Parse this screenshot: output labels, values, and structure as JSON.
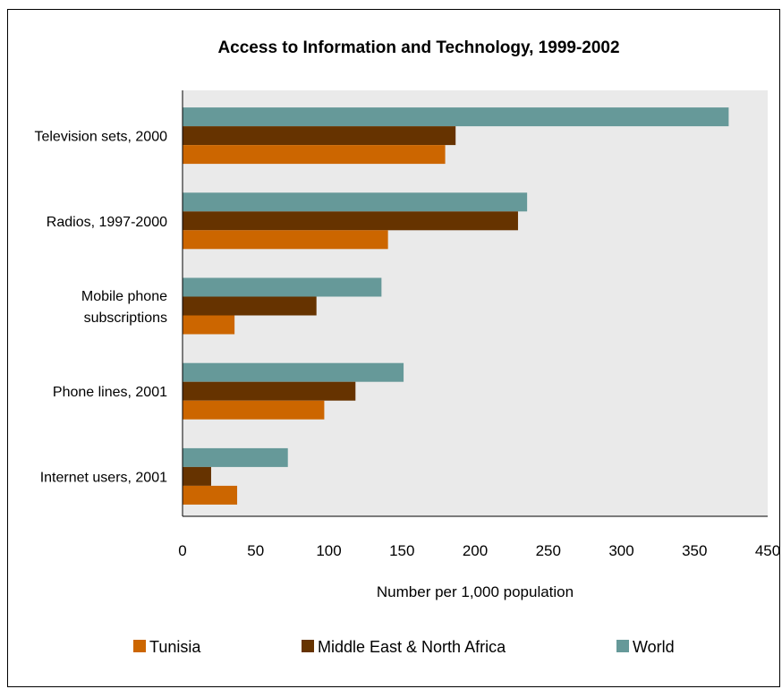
{
  "chart_data": {
    "type": "bar",
    "orientation": "horizontal",
    "title": "Access to Information and Technology, 1999-2002",
    "xlabel": "Number per 1,000 population",
    "ylabel": "",
    "xlim": [
      0,
      450
    ],
    "x_ticks": [
      "0",
      "50",
      "100",
      "150",
      "200",
      "250",
      "300",
      "350",
      "450"
    ],
    "grid": false,
    "legend_position": "bottom",
    "categories": [
      [
        "Television sets, 2000"
      ],
      [
        "Radios, 1997-2000"
      ],
      [
        "Mobile phone",
        "subscriptions"
      ],
      [
        "Phone lines, 2001"
      ],
      [
        "Internet users, 2001"
      ]
    ],
    "series": [
      {
        "name": "Tunisia",
        "color": "#CC6600",
        "values": [
          202,
          158,
          40,
          109,
          42
        ]
      },
      {
        "name": "Middle East & North Africa",
        "color": "#663300",
        "values": [
          210,
          258,
          103,
          133,
          22
        ]
      },
      {
        "name": "World",
        "color": "#669999",
        "values": [
          420,
          265,
          153,
          170,
          81
        ]
      }
    ],
    "plot_background": "#EAEAEA"
  }
}
